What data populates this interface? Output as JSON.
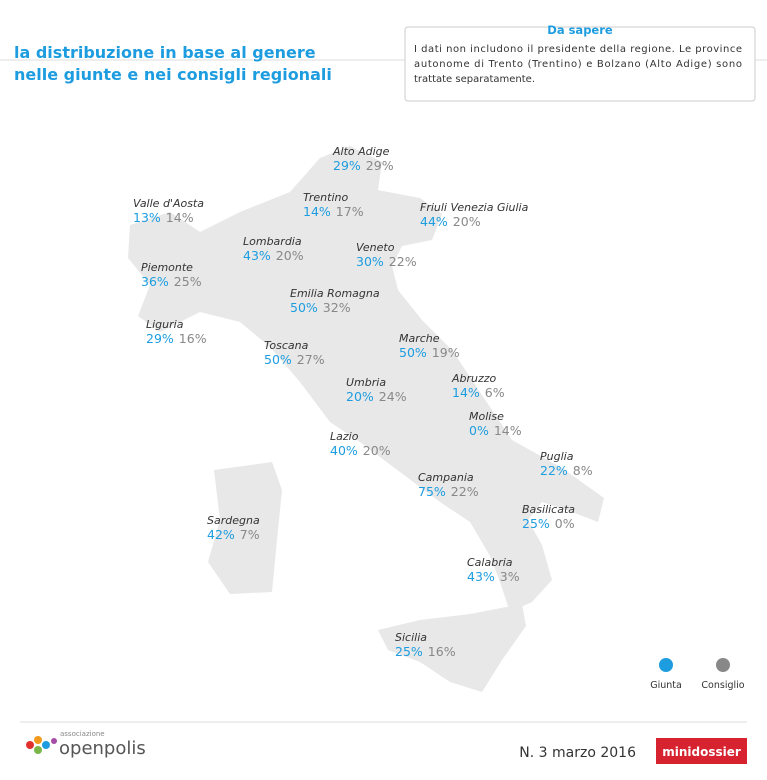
{
  "header": {
    "title_lines": [
      "la distribuzione in base al genere",
      "nelle giunte e nei consigli regionali"
    ]
  },
  "note": {
    "title": "Da sapere",
    "lines": [
      "I dati non includono il presidente della regione. Le province",
      "autonome di Trento (Trentino) e Bolzano (Alto Adige) sono",
      "trattate separatamente."
    ]
  },
  "regions": [
    {
      "name": "Alto Adige",
      "giunta": "29%",
      "consiglio": "29%"
    },
    {
      "name": "Trentino",
      "giunta": "14%",
      "consiglio": "17%"
    },
    {
      "name": "Valle d'Aosta",
      "giunta": "13%",
      "consiglio": "14%"
    },
    {
      "name": "Friuli Venezia Giulia",
      "giunta": "44%",
      "consiglio": "20%"
    },
    {
      "name": "Lombardia",
      "giunta": "43%",
      "consiglio": "20%"
    },
    {
      "name": "Veneto",
      "giunta": "30%",
      "consiglio": "22%"
    },
    {
      "name": "Piemonte",
      "giunta": "36%",
      "consiglio": "25%"
    },
    {
      "name": "Emilia Romagna",
      "giunta": "50%",
      "consiglio": "32%"
    },
    {
      "name": "Liguria",
      "giunta": "29%",
      "consiglio": "16%"
    },
    {
      "name": "Marche",
      "giunta": "50%",
      "consiglio": "19%"
    },
    {
      "name": "Toscana",
      "giunta": "50%",
      "consiglio": "27%"
    },
    {
      "name": "Abruzzo",
      "giunta": "14%",
      "consiglio": "6%"
    },
    {
      "name": "Umbria",
      "giunta": "20%",
      "consiglio": "24%"
    },
    {
      "name": "Molise",
      "giunta": "0%",
      "consiglio": "14%"
    },
    {
      "name": "Lazio",
      "giunta": "40%",
      "consiglio": "20%"
    },
    {
      "name": "Puglia",
      "giunta": "22%",
      "consiglio": "8%"
    },
    {
      "name": "Campania",
      "giunta": "75%",
      "consiglio": "22%"
    },
    {
      "name": "Basilicata",
      "giunta": "25%",
      "consiglio": "0%"
    },
    {
      "name": "Sardegna",
      "giunta": "42%",
      "consiglio": "7%"
    },
    {
      "name": "Calabria",
      "giunta": "43%",
      "consiglio": "3%"
    },
    {
      "name": "Sicilia",
      "giunta": "25%",
      "consiglio": "16%"
    }
  ],
  "legend": {
    "giunta": "Giunta",
    "consiglio": "Consiglio",
    "colors": {
      "giunta": "#1d9de0",
      "consiglio": "#888888"
    }
  },
  "footer": {
    "logo_small": "associazione",
    "logo": "openpolis",
    "issue": "N. 3 marzo 2016",
    "badge": "minidossier"
  }
}
